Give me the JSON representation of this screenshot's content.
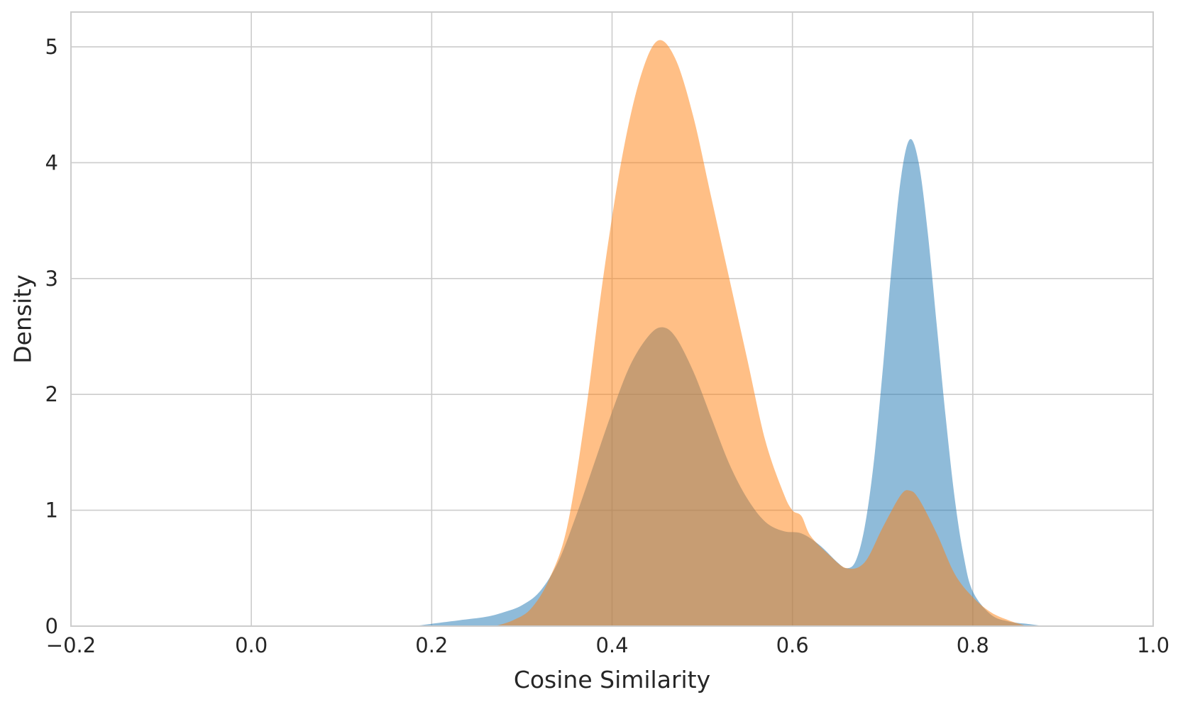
{
  "chart_data": {
    "type": "area",
    "title": "",
    "xlabel": "Cosine Similarity",
    "ylabel": "Density",
    "xlim": [
      -0.2,
      1.0
    ],
    "ylim": [
      0,
      5.3
    ],
    "grid": true,
    "legend": "none",
    "x_ticks": [
      -0.2,
      0.0,
      0.2,
      0.4,
      0.6,
      0.8,
      1.0
    ],
    "x_tick_labels": [
      "−0.2",
      "0.0",
      "0.2",
      "0.4",
      "0.6",
      "0.8",
      "1.0"
    ],
    "y_ticks": [
      0,
      1,
      2,
      3,
      4,
      5
    ],
    "y_tick_labels": [
      "0",
      "1",
      "2",
      "3",
      "4",
      "5"
    ],
    "series": [
      {
        "color": "#1f77b4",
        "opacity": 0.5,
        "points": [
          [
            0.18,
            0.0
          ],
          [
            0.2,
            0.02
          ],
          [
            0.23,
            0.05
          ],
          [
            0.26,
            0.08
          ],
          [
            0.28,
            0.12
          ],
          [
            0.3,
            0.18
          ],
          [
            0.32,
            0.3
          ],
          [
            0.34,
            0.55
          ],
          [
            0.36,
            0.95
          ],
          [
            0.38,
            1.4
          ],
          [
            0.4,
            1.85
          ],
          [
            0.42,
            2.25
          ],
          [
            0.44,
            2.5
          ],
          [
            0.455,
            2.58
          ],
          [
            0.47,
            2.5
          ],
          [
            0.49,
            2.2
          ],
          [
            0.51,
            1.8
          ],
          [
            0.53,
            1.4
          ],
          [
            0.55,
            1.1
          ],
          [
            0.57,
            0.9
          ],
          [
            0.59,
            0.82
          ],
          [
            0.61,
            0.8
          ],
          [
            0.63,
            0.7
          ],
          [
            0.65,
            0.55
          ],
          [
            0.66,
            0.5
          ],
          [
            0.67,
            0.56
          ],
          [
            0.68,
            0.85
          ],
          [
            0.69,
            1.4
          ],
          [
            0.7,
            2.2
          ],
          [
            0.71,
            3.1
          ],
          [
            0.72,
            3.85
          ],
          [
            0.73,
            4.2
          ],
          [
            0.74,
            4.0
          ],
          [
            0.75,
            3.4
          ],
          [
            0.76,
            2.6
          ],
          [
            0.77,
            1.8
          ],
          [
            0.78,
            1.1
          ],
          [
            0.79,
            0.6
          ],
          [
            0.8,
            0.3
          ],
          [
            0.82,
            0.1
          ],
          [
            0.84,
            0.04
          ],
          [
            0.86,
            0.02
          ],
          [
            0.88,
            0.0
          ]
        ]
      },
      {
        "color": "#ff7f0e",
        "opacity": 0.5,
        "points": [
          [
            0.27,
            0.0
          ],
          [
            0.29,
            0.05
          ],
          [
            0.31,
            0.15
          ],
          [
            0.33,
            0.4
          ],
          [
            0.35,
            0.85
          ],
          [
            0.37,
            1.8
          ],
          [
            0.39,
            3.0
          ],
          [
            0.41,
            4.0
          ],
          [
            0.43,
            4.7
          ],
          [
            0.45,
            5.05
          ],
          [
            0.47,
            4.9
          ],
          [
            0.49,
            4.4
          ],
          [
            0.51,
            3.7
          ],
          [
            0.53,
            3.0
          ],
          [
            0.55,
            2.3
          ],
          [
            0.57,
            1.6
          ],
          [
            0.59,
            1.15
          ],
          [
            0.6,
            1.0
          ],
          [
            0.61,
            0.95
          ],
          [
            0.62,
            0.78
          ],
          [
            0.64,
            0.62
          ],
          [
            0.66,
            0.5
          ],
          [
            0.68,
            0.55
          ],
          [
            0.7,
            0.85
          ],
          [
            0.72,
            1.13
          ],
          [
            0.73,
            1.17
          ],
          [
            0.74,
            1.1
          ],
          [
            0.76,
            0.8
          ],
          [
            0.78,
            0.45
          ],
          [
            0.8,
            0.25
          ],
          [
            0.82,
            0.12
          ],
          [
            0.84,
            0.05
          ],
          [
            0.86,
            0.0
          ]
        ]
      }
    ]
  }
}
